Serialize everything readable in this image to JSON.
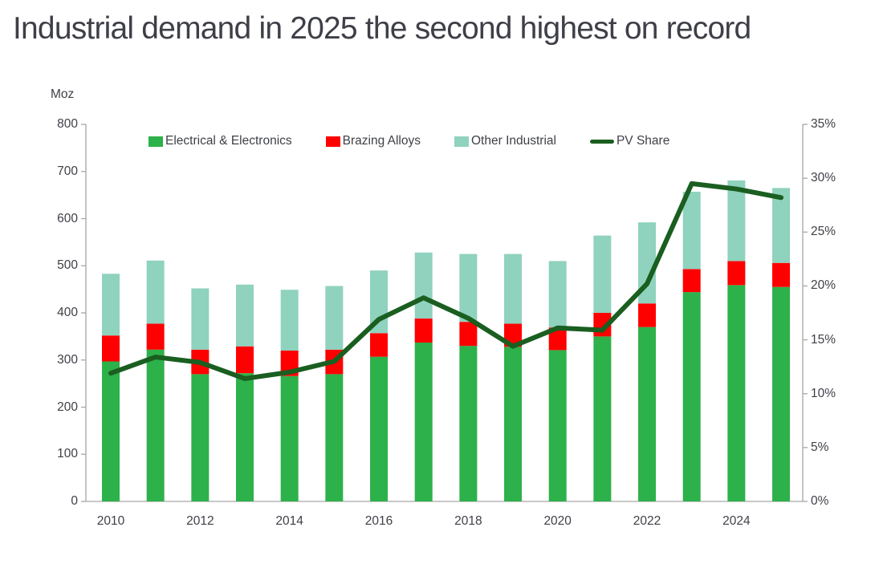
{
  "chart_data": {
    "type": "bar",
    "subtype": "stacked-bars-with-right-axis-line",
    "title": "Industrial demand in 2025 the second highest on record",
    "categories": [
      "2010",
      "2011",
      "2012",
      "2013",
      "2014",
      "2015",
      "2016",
      "2017",
      "2018",
      "2019",
      "2020",
      "2021",
      "2022",
      "2023",
      "2024",
      "2025"
    ],
    "series": [
      {
        "name": "Electrical & Electronics",
        "color": "#2DB14A",
        "values": [
          297,
          322,
          270,
          272,
          266,
          270,
          307,
          337,
          330,
          328,
          321,
          350,
          370,
          444,
          459,
          455
        ]
      },
      {
        "name": "Brazing Alloys",
        "color": "#FF0000",
        "values": [
          55,
          55,
          52,
          57,
          54,
          52,
          50,
          51,
          51,
          49,
          48,
          50,
          50,
          49,
          51,
          51
        ]
      },
      {
        "name": "Other Industrial",
        "color": "#8FD2BE",
        "values": [
          131,
          134,
          130,
          131,
          129,
          135,
          133,
          140,
          144,
          148,
          141,
          164,
          172,
          164,
          171,
          159
        ]
      }
    ],
    "stack_totals": [
      483,
      511,
      452,
      460,
      449,
      457,
      490,
      528,
      525,
      525,
      510,
      564,
      592,
      657,
      681,
      665
    ],
    "line_series": {
      "name": "PV Share",
      "axis": "right",
      "color": "#1A5E20",
      "values": [
        11.9,
        13.4,
        12.9,
        11.4,
        12.0,
        13.0,
        16.9,
        18.9,
        17.0,
        14.4,
        16.1,
        15.9,
        20.2,
        29.5,
        29.0,
        28.2
      ]
    },
    "left_axis": {
      "label": "Moz",
      "min": 0,
      "max": 800,
      "step": 100,
      "ticks": [
        "800",
        "700",
        "600",
        "500",
        "400",
        "300",
        "200",
        "100",
        "0"
      ]
    },
    "right_axis": {
      "min": 0,
      "max": 35,
      "step": 5,
      "ticks": [
        "35%",
        "30%",
        "25%",
        "20%",
        "15%",
        "10%",
        "5%",
        "0%"
      ]
    },
    "x_tick_labels": [
      "2010",
      "2012",
      "2014",
      "2016",
      "2018",
      "2020",
      "2022",
      "2024"
    ],
    "legend_position": "top",
    "grid": false,
    "colors": {
      "axis": "#A6A6A6",
      "text": "#3F4048",
      "title": "#3E3F47"
    }
  }
}
